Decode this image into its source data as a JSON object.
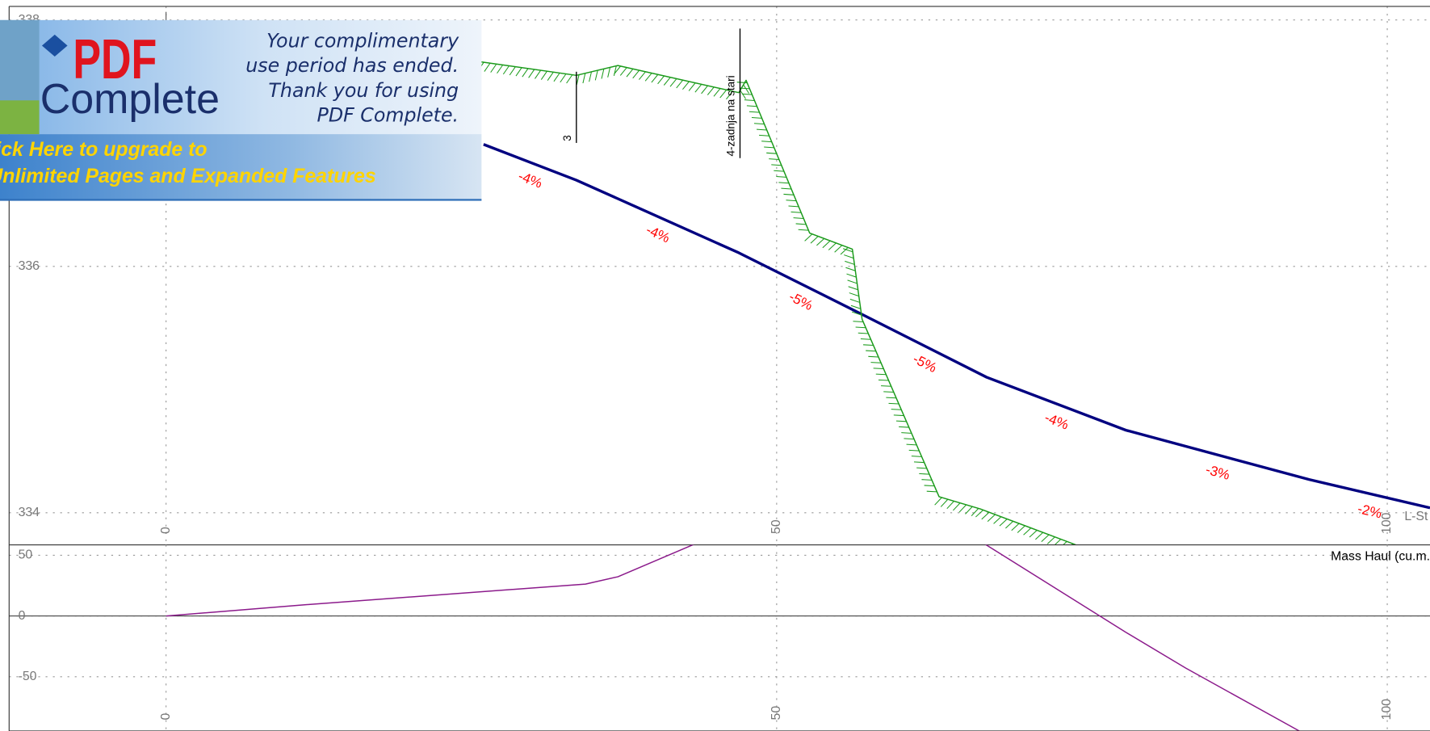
{
  "chart_data": [
    {
      "type": "line",
      "xlabel": "L-St",
      "xlim": [
        -12.85,
        103.5
      ],
      "ylim": [
        333.74,
        338.11
      ],
      "xticks": [
        0,
        50,
        100
      ],
      "yticks": [
        338,
        336,
        334
      ],
      "grid": true,
      "series": [
        {
          "color": "#000080",
          "x": [
            26.0,
            33.6,
            46.9,
            57.0,
            67.2,
            78.6,
            93.6,
            103.5
          ],
          "values": [
            336.99,
            336.7,
            336.11,
            335.61,
            335.1,
            334.67,
            334.27,
            334.04
          ],
          "grade_labels": [
            "-4%",
            "-4%",
            "-5%",
            "-5%",
            "-4%",
            "-3%",
            "-2%"
          ],
          "grade_color": "#ff0000"
        },
        {
          "color": "#1a9a1a",
          "hatched": true,
          "x": [
            25.8,
            33.6,
            37.0,
            46.9,
            47.5,
            52.7,
            56.2,
            57.0,
            63.3,
            66.7,
            74.5
          ],
          "values": [
            337.66,
            337.55,
            337.63,
            337.41,
            337.51,
            336.27,
            336.14,
            335.57,
            334.13,
            334.03,
            333.74
          ]
        }
      ],
      "markers": [
        {
          "label": "3",
          "x": 33.6
        },
        {
          "label": "4-zadnja na stari",
          "x": 47.0
        }
      ]
    },
    {
      "type": "line",
      "xlim": [
        -12.85,
        103.5
      ],
      "ylim": [
        -94.7,
        58.6
      ],
      "xticks": [
        0,
        50,
        100
      ],
      "yticks": [
        50,
        0,
        -50
      ],
      "grid": true,
      "zero_line": true,
      "series": [
        {
          "name": "Mass Haul (cu.m.",
          "color": "#8b1a8b",
          "x": [
            0,
            11.05,
            34.35,
            37.0,
            43.5,
            null,
            66.9,
            78.6,
            83.5,
            92.8
          ],
          "values": [
            0,
            9.0,
            26.3,
            32.3,
            60.2,
            null,
            60.2,
            -13.5,
            -42.9,
            -94.7
          ]
        }
      ]
    }
  ],
  "watermark": {
    "logo": "PDF",
    "product": "Complete",
    "message": [
      "Your complimentary",
      "use period has ended.",
      "Thank you for using",
      "PDF Complete."
    ],
    "upgrade": [
      "Click Here to upgrade to",
      "Unlimited Pages and Expanded Features"
    ]
  }
}
